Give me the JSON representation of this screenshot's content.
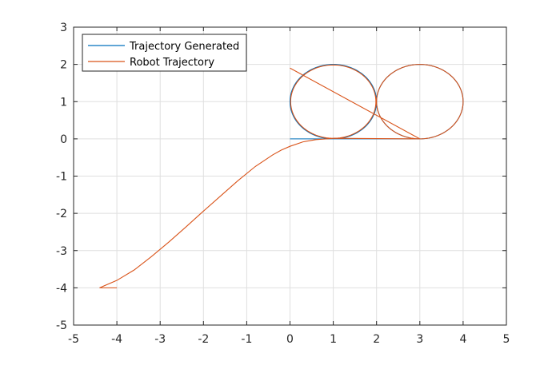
{
  "chart_data": {
    "type": "line",
    "title": "",
    "xlabel": "",
    "ylabel": "",
    "xlim": [
      -5,
      5
    ],
    "ylim": [
      -5,
      3
    ],
    "xticks": [
      -5,
      -4,
      -3,
      -2,
      -1,
      0,
      1,
      2,
      3,
      4,
      5
    ],
    "yticks": [
      -5,
      -4,
      -3,
      -2,
      -1,
      0,
      1,
      2,
      3
    ],
    "xtick_labels": [
      "-5",
      "-4",
      "-3",
      "-2",
      "-1",
      "0",
      "1",
      "2",
      "3",
      "4",
      "5"
    ],
    "ytick_labels": [
      "-5",
      "-4",
      "-3",
      "-2",
      "-1",
      "0",
      "1",
      "2",
      "3"
    ],
    "grid": true,
    "legend_position": "top-left",
    "series": [
      {
        "name": "Trajectory Generated",
        "color": "#0072bd",
        "x": [
          0,
          0.4,
          0.8,
          1.0,
          1.35,
          1.7,
          1.9,
          2.0,
          1.9,
          1.7,
          1.35,
          1.0,
          0.65,
          0.3,
          0.1,
          0.0,
          0.1,
          0.3,
          0.65,
          1.0,
          1.5,
          2.0,
          2.5,
          3.0,
          3.35,
          3.7,
          3.9,
          4.0,
          3.9,
          3.7,
          3.35,
          3.0,
          2.65,
          2.3,
          2.1,
          2.0,
          2.1,
          2.3,
          2.65,
          3.0
        ],
        "y": [
          0,
          0,
          0,
          0.0,
          0.06,
          0.28,
          0.56,
          1.0,
          1.44,
          1.72,
          1.94,
          2.0,
          1.94,
          1.72,
          1.44,
          1.0,
          0.56,
          0.28,
          0.06,
          0.0,
          0.0,
          0.0,
          0.0,
          0.0,
          0.06,
          0.28,
          0.56,
          1.0,
          1.44,
          1.72,
          1.94,
          2.0,
          1.94,
          1.72,
          1.44,
          1.0,
          0.56,
          0.28,
          0.06,
          0.0
        ]
      },
      {
        "name": "Robot Trajectory",
        "color": "#d95319",
        "x": [
          -4.0,
          -4.4,
          -4.0,
          -3.6,
          -3.2,
          -2.8,
          -2.4,
          -2.0,
          -1.6,
          -1.2,
          -0.8,
          -0.4,
          -0.2,
          0.0,
          0.3,
          0.6,
          0.85,
          1.0,
          1.35,
          1.7,
          1.9,
          2.0,
          2.1,
          2.3,
          2.65,
          3.0,
          3.35,
          3.7,
          3.9,
          4.0,
          3.9,
          3.7,
          3.35,
          3.0,
          1.0,
          0.0
        ],
        "y": [
          -4.0,
          -4.0,
          -3.8,
          -3.52,
          -3.16,
          -2.77,
          -2.36,
          -1.94,
          -1.53,
          -1.12,
          -0.74,
          -0.43,
          -0.3,
          -0.2,
          -0.08,
          -0.02,
          0.0,
          0.0,
          0.06,
          0.28,
          0.56,
          1.0,
          1.44,
          1.72,
          1.94,
          2.0,
          1.94,
          1.72,
          1.44,
          1.0,
          0.56,
          0.28,
          0.06,
          0.0,
          0.0,
          0.0
        ]
      }
    ],
    "extra_segments": [
      {
        "series": "Robot Trajectory",
        "x": [
          0.0,
          1.0
        ],
        "y": [
          1.9,
          2.0
        ]
      },
      {
        "series": "Robot Trajectory",
        "x": [
          1.0,
          3.0
        ],
        "y": [
          2.0,
          2.0
        ]
      }
    ]
  }
}
